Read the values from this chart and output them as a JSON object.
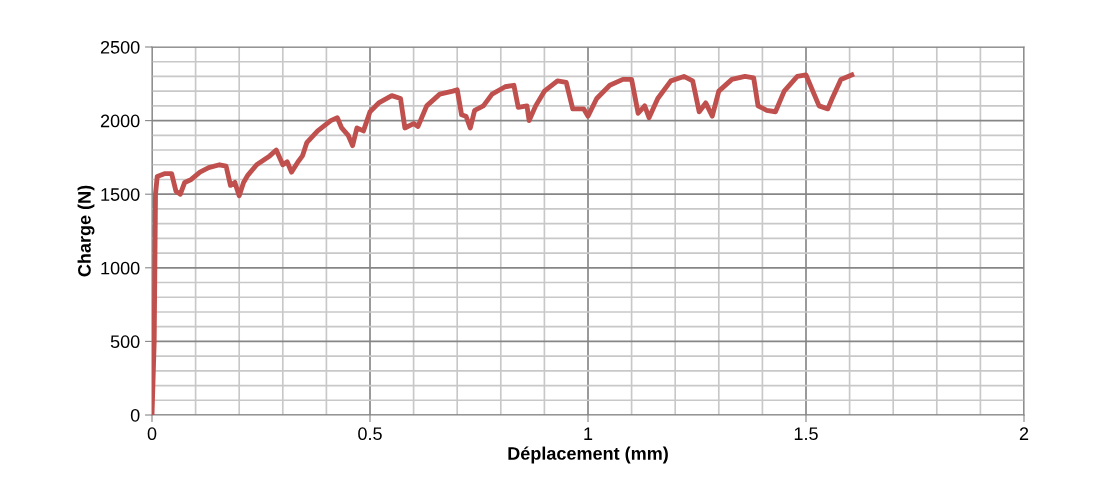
{
  "chart_data": {
    "type": "line",
    "xlabel": "Déplacement (mm)",
    "ylabel": "Charge (N)",
    "xlim": [
      0,
      2
    ],
    "ylim": [
      0,
      2500
    ],
    "xticks": [
      0,
      0.5,
      1,
      1.5,
      2
    ],
    "yticks": [
      0,
      500,
      1000,
      1500,
      2000,
      2500
    ],
    "grid": true,
    "legend": false,
    "marker": "none",
    "line_style": "solid",
    "series": [
      {
        "color": "#c0504d",
        "x": [
          0,
          0.005,
          0.008,
          0.012,
          0.03,
          0.045,
          0.055,
          0.065,
          0.075,
          0.09,
          0.11,
          0.13,
          0.155,
          0.17,
          0.18,
          0.19,
          0.2,
          0.21,
          0.22,
          0.24,
          0.27,
          0.285,
          0.3,
          0.31,
          0.32,
          0.335,
          0.345,
          0.355,
          0.38,
          0.41,
          0.425,
          0.435,
          0.45,
          0.46,
          0.47,
          0.485,
          0.5,
          0.52,
          0.55,
          0.57,
          0.58,
          0.6,
          0.61,
          0.63,
          0.66,
          0.69,
          0.7,
          0.71,
          0.72,
          0.73,
          0.74,
          0.76,
          0.78,
          0.81,
          0.83,
          0.84,
          0.86,
          0.865,
          0.88,
          0.9,
          0.93,
          0.95,
          0.965,
          0.99,
          1.0,
          1.02,
          1.05,
          1.08,
          1.1,
          1.115,
          1.13,
          1.14,
          1.16,
          1.19,
          1.22,
          1.24,
          1.255,
          1.27,
          1.285,
          1.3,
          1.33,
          1.36,
          1.38,
          1.39,
          1.41,
          1.43,
          1.45,
          1.48,
          1.5,
          1.52,
          1.53,
          1.55,
          1.56,
          1.58,
          1.605
        ],
        "values": [
          0,
          500,
          1500,
          1620,
          1640,
          1640,
          1520,
          1500,
          1580,
          1600,
          1650,
          1680,
          1700,
          1690,
          1560,
          1580,
          1490,
          1580,
          1630,
          1700,
          1760,
          1800,
          1700,
          1720,
          1650,
          1720,
          1760,
          1850,
          1930,
          2000,
          2020,
          1950,
          1900,
          1830,
          1950,
          1930,
          2060,
          2120,
          2170,
          2150,
          1950,
          1980,
          1960,
          2100,
          2180,
          2200,
          2210,
          2040,
          2030,
          1950,
          2070,
          2100,
          2180,
          2230,
          2240,
          2090,
          2100,
          2000,
          2100,
          2200,
          2270,
          2260,
          2080,
          2080,
          2030,
          2150,
          2240,
          2280,
          2280,
          2050,
          2100,
          2020,
          2150,
          2270,
          2300,
          2270,
          2060,
          2120,
          2030,
          2200,
          2280,
          2300,
          2290,
          2100,
          2070,
          2060,
          2200,
          2300,
          2310,
          2170,
          2100,
          2080,
          2150,
          2280,
          2310
        ]
      }
    ]
  }
}
